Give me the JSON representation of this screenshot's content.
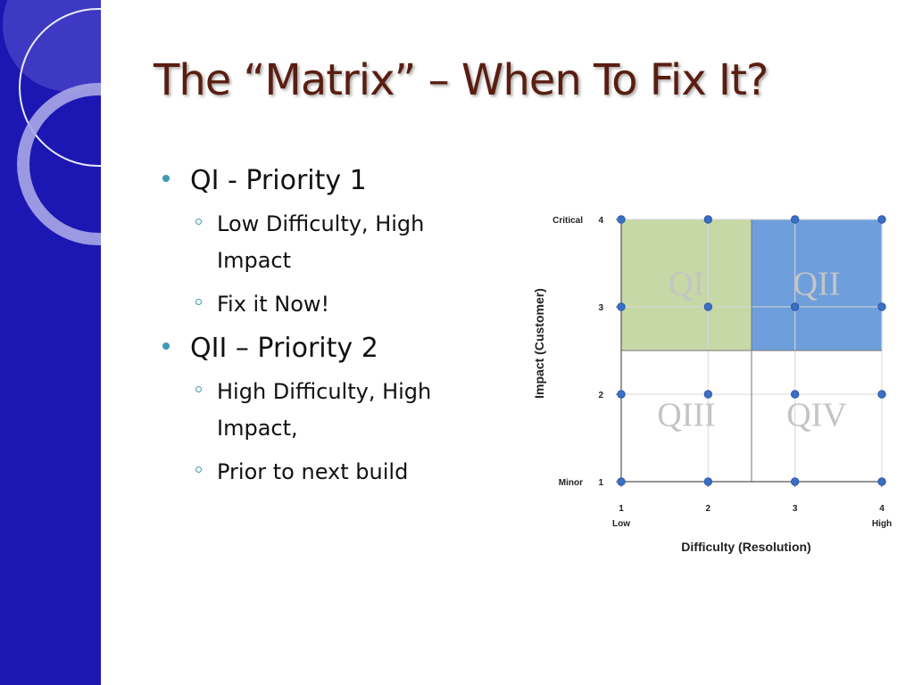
{
  "slide": {
    "title": "The “Matrix” – When To Fix It?",
    "bullets": [
      {
        "text": "QI - Priority 1",
        "subs": [
          "Low Difficulty, High",
          "Impact",
          "Fix it Now!"
        ]
      },
      {
        "text": "QII – Priority 2",
        "subs": [
          "High Difficulty, High",
          "Impact,",
          "Prior to next build"
        ]
      }
    ]
  },
  "chart_data": {
    "type": "scatter",
    "xlabel": "Difficulty (Resolution)",
    "ylabel": "Impact (Customer)",
    "x_ticks": [
      1,
      2,
      3,
      4
    ],
    "y_ticks": [
      1,
      2,
      3,
      4
    ],
    "x_tick_labels": [
      "Low",
      "High"
    ],
    "y_tick_labels": [
      "Minor",
      "Critical"
    ],
    "xlim": [
      1,
      4
    ],
    "ylim": [
      1,
      4
    ],
    "quadrants": [
      {
        "label": "QI",
        "x_range": [
          1,
          2.5
        ],
        "y_range": [
          2.5,
          4
        ],
        "color": "#c6d8a5"
      },
      {
        "label": "QII",
        "x_range": [
          2.5,
          4
        ],
        "y_range": [
          2.5,
          4
        ],
        "color": "#6e9fdc"
      },
      {
        "label": "QIII",
        "x_range": [
          1,
          2.5
        ],
        "y_range": [
          1,
          2.5
        ],
        "color": "#ffffff"
      },
      {
        "label": "QIV",
        "x_range": [
          2.5,
          4
        ],
        "y_range": [
          1,
          2.5
        ],
        "color": "#ffffff"
      }
    ],
    "points": [
      {
        "x": 1,
        "y": 1
      },
      {
        "x": 2,
        "y": 1
      },
      {
        "x": 3,
        "y": 1
      },
      {
        "x": 4,
        "y": 1
      },
      {
        "x": 1,
        "y": 2
      },
      {
        "x": 2,
        "y": 2
      },
      {
        "x": 3,
        "y": 2
      },
      {
        "x": 4,
        "y": 2
      },
      {
        "x": 1,
        "y": 3
      },
      {
        "x": 2,
        "y": 3
      },
      {
        "x": 3,
        "y": 3
      },
      {
        "x": 4,
        "y": 3
      },
      {
        "x": 1,
        "y": 4
      },
      {
        "x": 2,
        "y": 4
      },
      {
        "x": 3,
        "y": 4
      },
      {
        "x": 4,
        "y": 4
      }
    ],
    "grid": true,
    "point_color": "#3a6fc4"
  }
}
